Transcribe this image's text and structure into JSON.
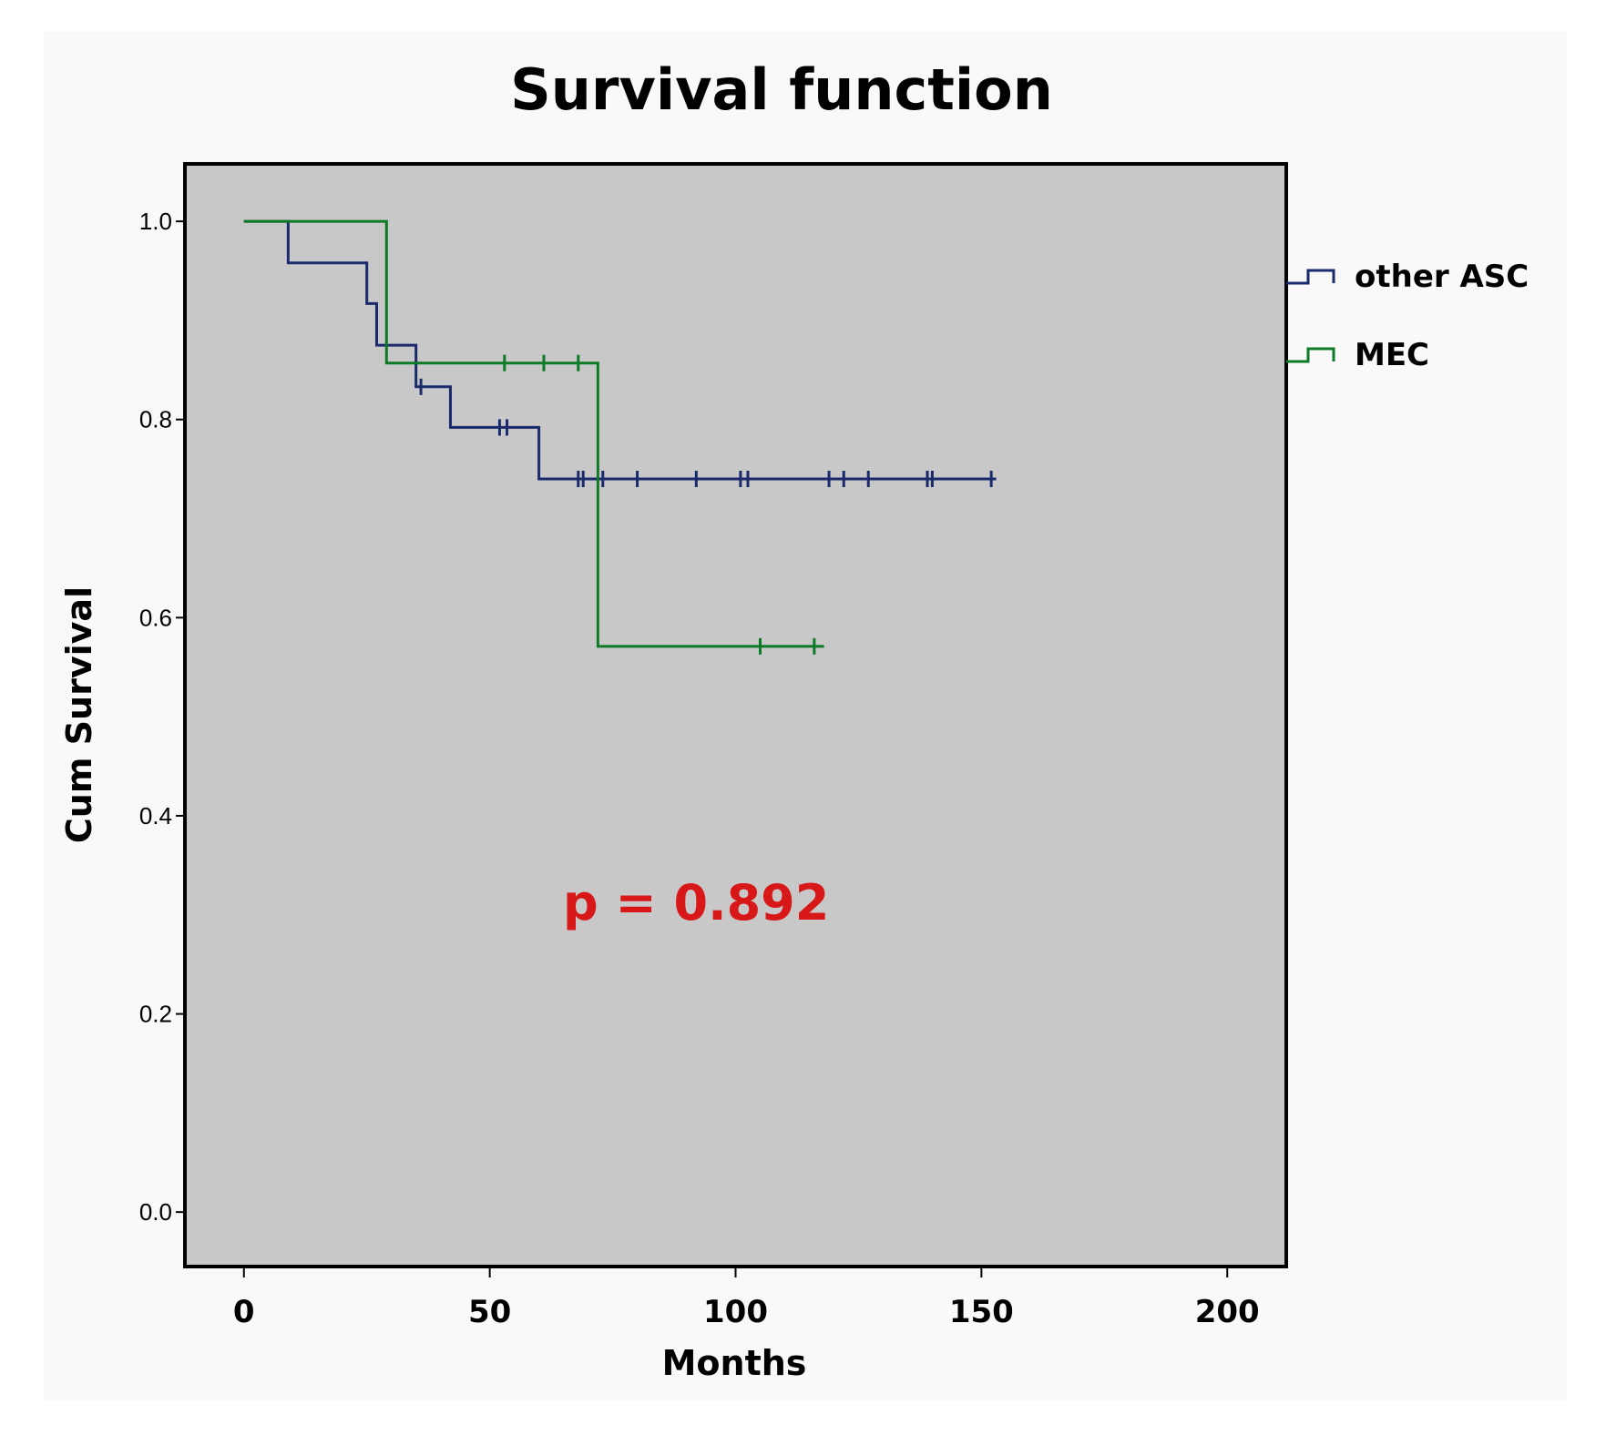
{
  "chart_data": {
    "type": "line",
    "subtype": "kaplan-meier-step",
    "title": "Survival function",
    "xlabel": "Months",
    "ylabel": "Cum Survival",
    "xlim": [
      -12,
      212
    ],
    "ylim": [
      -0.055,
      1.058
    ],
    "xticks": [
      0,
      50,
      100,
      150,
      200
    ],
    "xtick_labels": [
      "0",
      "50",
      "100",
      "150",
      "200"
    ],
    "yticks": [
      0.0,
      0.2,
      0.4,
      0.6,
      0.8,
      1.0
    ],
    "ytick_labels": [
      "0.0",
      "0.2",
      "0.4",
      "0.6",
      "0.8",
      "1.0"
    ],
    "grid": false,
    "legend_position": "right",
    "annotation": "p = 0.892",
    "annotation_color": "#d81818",
    "plot_background": "#c8c8c8",
    "series": [
      {
        "name": "other ASC",
        "color": "#1a2a6c",
        "steps": [
          {
            "x": 0,
            "y": 1.0
          },
          {
            "x": 9,
            "y": 0.958
          },
          {
            "x": 25,
            "y": 0.917
          },
          {
            "x": 27,
            "y": 0.875
          },
          {
            "x": 35,
            "y": 0.833
          },
          {
            "x": 42,
            "y": 0.792
          },
          {
            "x": 60,
            "y": 0.74
          }
        ],
        "end_x": 153,
        "censored": [
          {
            "x": 36,
            "y": 0.833
          },
          {
            "x": 52,
            "y": 0.792
          },
          {
            "x": 53.5,
            "y": 0.792
          },
          {
            "x": 68,
            "y": 0.74
          },
          {
            "x": 69,
            "y": 0.74
          },
          {
            "x": 73,
            "y": 0.74
          },
          {
            "x": 80,
            "y": 0.74
          },
          {
            "x": 92,
            "y": 0.74
          },
          {
            "x": 101,
            "y": 0.74
          },
          {
            "x": 102.5,
            "y": 0.74
          },
          {
            "x": 119,
            "y": 0.74
          },
          {
            "x": 122,
            "y": 0.74
          },
          {
            "x": 127,
            "y": 0.74
          },
          {
            "x": 139,
            "y": 0.74
          },
          {
            "x": 140,
            "y": 0.74
          },
          {
            "x": 152,
            "y": 0.74
          }
        ]
      },
      {
        "name": "MEC",
        "color": "#0d7a26",
        "steps": [
          {
            "x": 0,
            "y": 1.0
          },
          {
            "x": 29,
            "y": 0.857
          },
          {
            "x": 72,
            "y": 0.571
          }
        ],
        "end_x": 118,
        "censored": [
          {
            "x": 53,
            "y": 0.857
          },
          {
            "x": 61,
            "y": 0.857
          },
          {
            "x": 68,
            "y": 0.857
          },
          {
            "x": 105,
            "y": 0.571
          },
          {
            "x": 116,
            "y": 0.571
          }
        ]
      }
    ]
  }
}
